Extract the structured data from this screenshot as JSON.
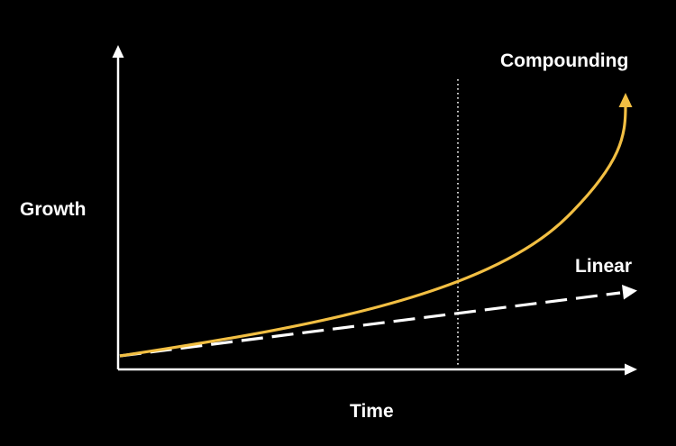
{
  "labels": {
    "y_axis": "Growth",
    "x_axis": "Time",
    "compounding": "Compounding",
    "linear": "Linear"
  },
  "colors": {
    "background": "#000000",
    "axis": "#ffffff",
    "compounding": "#f2bf43",
    "linear": "#ffffff",
    "marker": "#ffffff"
  },
  "chart_data": {
    "type": "line",
    "title": "",
    "xlabel": "Time",
    "ylabel": "Growth",
    "grid": false,
    "series": [
      {
        "name": "Compounding",
        "shape": "exponential",
        "style": "solid"
      },
      {
        "name": "Linear",
        "shape": "linear",
        "style": "dashed"
      }
    ],
    "annotations": [
      {
        "type": "vertical-dotted-marker",
        "position": "where compounding overtakes linear"
      }
    ]
  }
}
